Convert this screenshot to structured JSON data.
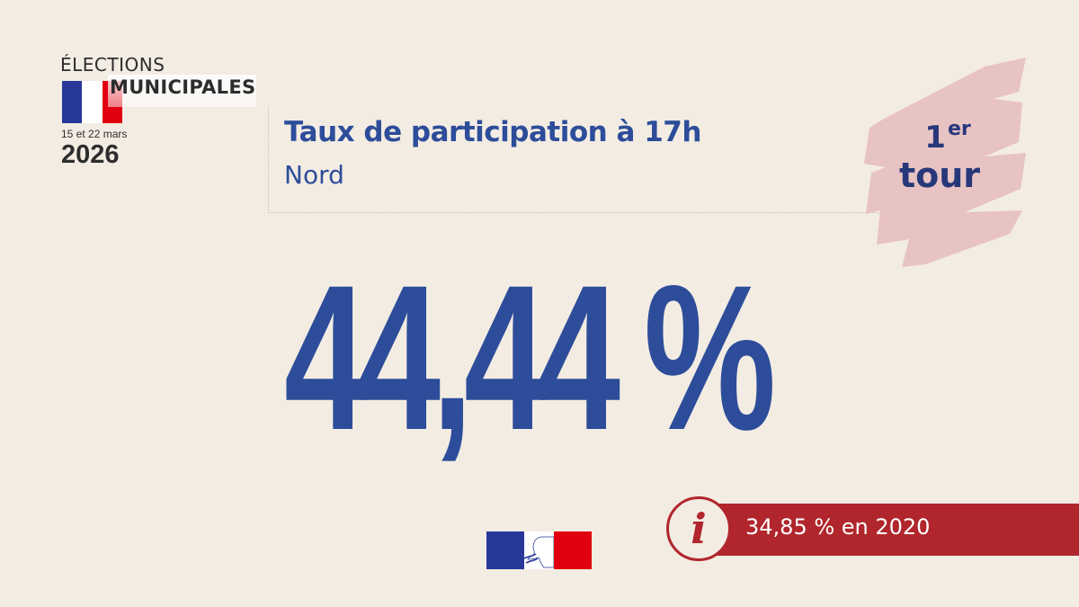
{
  "logo": {
    "line1": "ÉLECTIONS",
    "line2": "MUNICIPALES",
    "dates": "15 et 22 mars",
    "year": "2026"
  },
  "header": {
    "title": "Taux de participation à 17h",
    "subtitle": "Nord"
  },
  "badge": {
    "number": "1",
    "suffix": "er",
    "word": "tour"
  },
  "main": {
    "value": "44,44 %"
  },
  "comparison": {
    "text": "34,85 % en 2020",
    "icon": "info-icon"
  },
  "colors": {
    "background": "#f3ece3",
    "blue": "#2d4d9a",
    "red": "#b0262c",
    "badge_pink": "#e8c3c3",
    "flag_blue": "#27389a",
    "flag_red": "#e1000f"
  }
}
